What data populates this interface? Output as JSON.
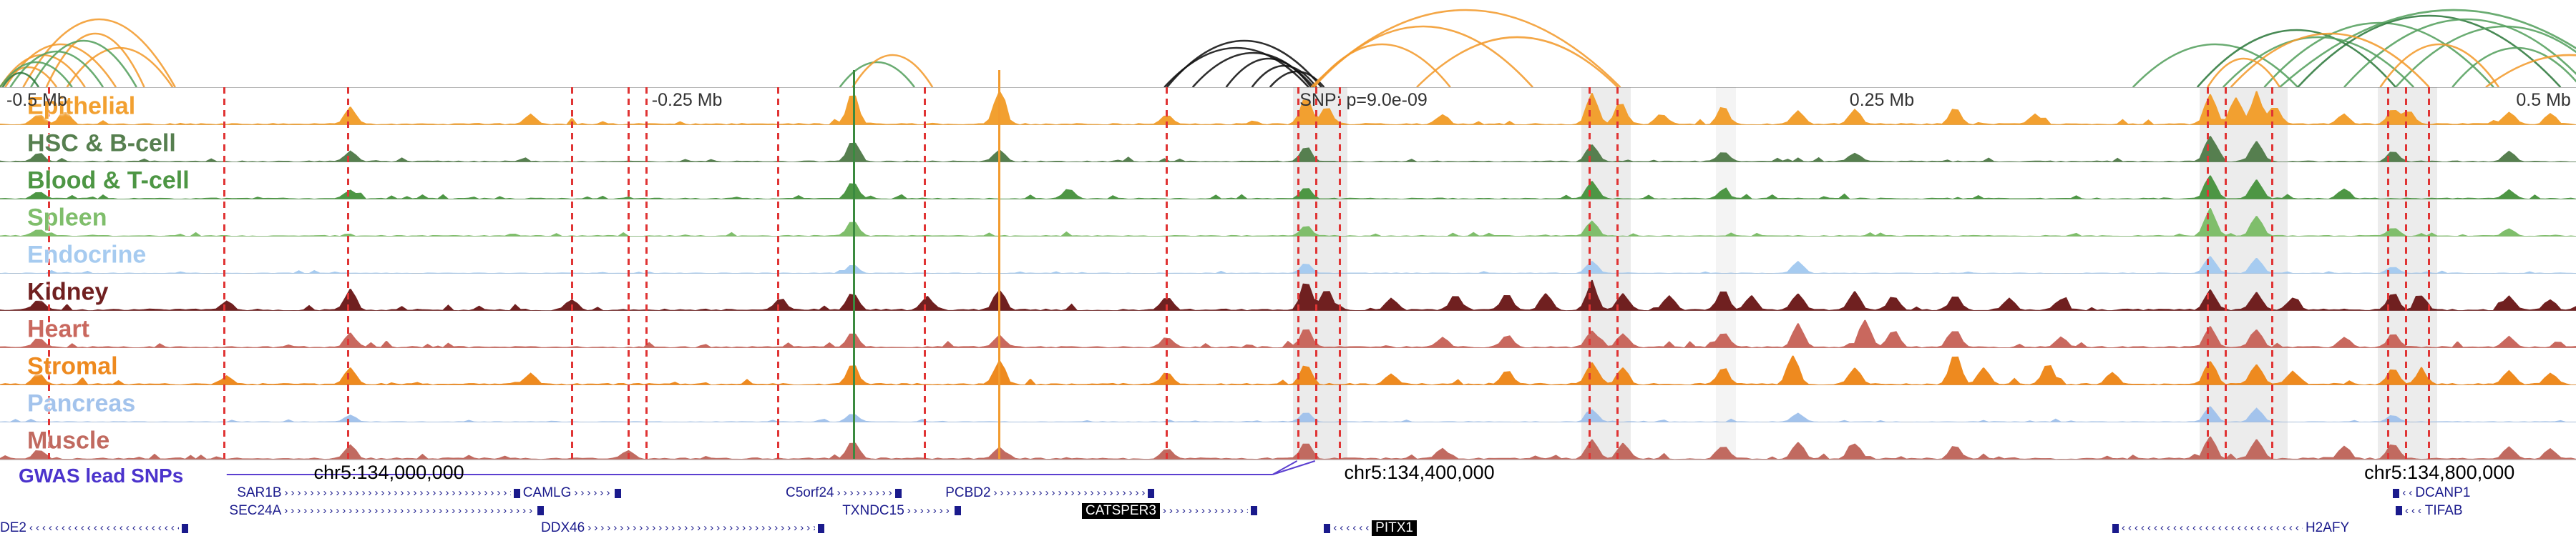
{
  "chart_data": {
    "type": "area",
    "description": "Genome browser: chromatin interaction arcs, 10 cell-type signal tracks, GWAS lead SNP annotations and gene models",
    "arc_colors": {
      "o": "#F29B2E",
      "g": "#55A05E",
      "dg": "#2F7A3D",
      "k": "#111111"
    },
    "arcs": [
      [
        0,
        3.3,
        "o",
        45
      ],
      [
        0.2,
        4.5,
        "o",
        60
      ],
      [
        0.9,
        6.8,
        "o",
        95
      ],
      [
        1.8,
        5.6,
        "o",
        75
      ],
      [
        0,
        2.2,
        "o",
        28
      ],
      [
        2.6,
        6.7,
        "o",
        55
      ],
      [
        0,
        2.8,
        "g",
        35
      ],
      [
        0.4,
        4.0,
        "g",
        50
      ],
      [
        1.2,
        5.3,
        "g",
        65
      ],
      [
        0.1,
        1.5,
        "dg",
        20
      ],
      [
        32.6,
        35.5,
        "g",
        35
      ],
      [
        33.1,
        36.2,
        "o",
        45
      ],
      [
        45.2,
        50.8,
        "k",
        55
      ],
      [
        46.3,
        51.0,
        "k",
        48
      ],
      [
        47.6,
        50.9,
        "k",
        40
      ],
      [
        48.6,
        51.1,
        "k",
        30
      ],
      [
        45.3,
        51.3,
        "k",
        65
      ],
      [
        49.3,
        51.4,
        "k",
        22
      ],
      [
        50.9,
        62.9,
        "o",
        108
      ],
      [
        51.0,
        59.5,
        "o",
        85
      ],
      [
        51.0,
        56.3,
        "o",
        60
      ],
      [
        55.0,
        62.8,
        "o",
        70
      ],
      [
        82.8,
        89.2,
        "g",
        60
      ],
      [
        85.3,
        93.0,
        "dg",
        80
      ],
      [
        86.3,
        93.7,
        "g",
        70
      ],
      [
        87.9,
        96.8,
        "g",
        90
      ],
      [
        89.2,
        99.4,
        "dg",
        100
      ],
      [
        91.0,
        100.5,
        "g",
        95
      ],
      [
        93.0,
        101.5,
        "g",
        85
      ],
      [
        88.5,
        102.0,
        "g",
        108
      ],
      [
        95.2,
        100.2,
        "g",
        55
      ],
      [
        85.7,
        88.5,
        "o",
        40
      ],
      [
        86.6,
        94.3,
        "o",
        75
      ],
      [
        92.4,
        97.0,
        "o",
        60
      ],
      [
        96.5,
        103.0,
        "o",
        45
      ]
    ],
    "tracks": [
      {
        "name": "Epithelial",
        "color": "#F2A030",
        "noise": 0.9,
        "peaks": [
          [
            1.5,
            0.3
          ],
          [
            2.5,
            0.4
          ],
          [
            13.6,
            0.5
          ],
          [
            20.6,
            0.3
          ],
          [
            33.1,
            0.95
          ],
          [
            38.8,
            1.0
          ],
          [
            45.3,
            0.25
          ],
          [
            50.7,
            0.8
          ],
          [
            51.5,
            0.5
          ],
          [
            56,
            0.3
          ],
          [
            61.8,
            0.9
          ],
          [
            62.9,
            0.65
          ],
          [
            64.5,
            0.3
          ],
          [
            66.9,
            0.5
          ],
          [
            69.8,
            0.4
          ],
          [
            72,
            0.45
          ],
          [
            75.9,
            0.5
          ],
          [
            79,
            0.3
          ],
          [
            85.8,
            0.9
          ],
          [
            86.8,
            0.8
          ],
          [
            87.6,
            0.85
          ],
          [
            88.3,
            0.55
          ],
          [
            91,
            0.3
          ],
          [
            92.9,
            0.45
          ],
          [
            93.5,
            0.4
          ],
          [
            97.4,
            0.35
          ],
          [
            99,
            0.3
          ]
        ]
      },
      {
        "name": "HSC & B-cell",
        "color": "#567F4F",
        "noise": 0.7,
        "peaks": [
          [
            1.5,
            0.25
          ],
          [
            13.6,
            0.3
          ],
          [
            33.1,
            0.6
          ],
          [
            38.8,
            0.35
          ],
          [
            50.7,
            0.45
          ],
          [
            61.8,
            0.5
          ],
          [
            66.9,
            0.3
          ],
          [
            72,
            0.25
          ],
          [
            85.8,
            0.75
          ],
          [
            87.6,
            0.6
          ],
          [
            92.9,
            0.3
          ],
          [
            97.4,
            0.3
          ]
        ]
      },
      {
        "name": "Blood & T-cell",
        "color": "#4D9644",
        "noise": 0.7,
        "peaks": [
          [
            1.5,
            0.2
          ],
          [
            13.6,
            0.25
          ],
          [
            33.1,
            0.5
          ],
          [
            41.5,
            0.3
          ],
          [
            50.7,
            0.35
          ],
          [
            61.8,
            0.5
          ],
          [
            66.9,
            0.25
          ],
          [
            85.8,
            0.7
          ],
          [
            87.6,
            0.55
          ],
          [
            91,
            0.3
          ],
          [
            97.4,
            0.25
          ]
        ]
      },
      {
        "name": "Spleen",
        "color": "#7FBE6B",
        "noise": 0.6,
        "peaks": [
          [
            1.5,
            0.2
          ],
          [
            33.1,
            0.45
          ],
          [
            50.7,
            0.3
          ],
          [
            61.8,
            0.45
          ],
          [
            85.8,
            0.8
          ],
          [
            87.6,
            0.6
          ],
          [
            92.9,
            0.25
          ],
          [
            97.4,
            0.2
          ]
        ]
      },
      {
        "name": "Endocrine",
        "color": "#A6CBF0",
        "noise": 0.4,
        "peaks": [
          [
            33.1,
            0.25
          ],
          [
            50.7,
            0.3
          ],
          [
            61.8,
            0.35
          ],
          [
            69.8,
            0.35
          ],
          [
            85.8,
            0.5
          ],
          [
            87.6,
            0.45
          ],
          [
            92.9,
            0.2
          ]
        ]
      },
      {
        "name": "Kidney",
        "color": "#702020",
        "noise": 1.0,
        "peaks": [
          [
            1.5,
            0.3
          ],
          [
            8.8,
            0.25
          ],
          [
            13.6,
            0.6
          ],
          [
            22.2,
            0.3
          ],
          [
            30.3,
            0.35
          ],
          [
            33.1,
            0.5
          ],
          [
            36,
            0.4
          ],
          [
            38.8,
            0.6
          ],
          [
            45.3,
            0.4
          ],
          [
            50.7,
            0.85
          ],
          [
            51.5,
            0.6
          ],
          [
            54,
            0.35
          ],
          [
            56.5,
            0.45
          ],
          [
            58.5,
            0.5
          ],
          [
            60,
            0.5
          ],
          [
            61.8,
            0.7
          ],
          [
            63,
            0.5
          ],
          [
            64.8,
            0.4
          ],
          [
            66.9,
            0.6
          ],
          [
            68,
            0.4
          ],
          [
            69.8,
            0.5
          ],
          [
            72,
            0.55
          ],
          [
            73.5,
            0.4
          ],
          [
            75.9,
            0.45
          ],
          [
            78,
            0.35
          ],
          [
            80,
            0.3
          ],
          [
            85.8,
            0.6
          ],
          [
            87.6,
            0.5
          ],
          [
            89,
            0.35
          ],
          [
            92.9,
            0.5
          ],
          [
            94,
            0.4
          ],
          [
            97.4,
            0.4
          ],
          [
            99,
            0.3
          ]
        ]
      },
      {
        "name": "Heart",
        "color": "#C9685E",
        "noise": 0.9,
        "peaks": [
          [
            1.5,
            0.25
          ],
          [
            13.6,
            0.4
          ],
          [
            33.1,
            0.45
          ],
          [
            38.8,
            0.35
          ],
          [
            45.3,
            0.3
          ],
          [
            50.7,
            0.6
          ],
          [
            56,
            0.3
          ],
          [
            58.5,
            0.35
          ],
          [
            61.8,
            0.5
          ],
          [
            63,
            0.4
          ],
          [
            66.9,
            0.45
          ],
          [
            69.8,
            0.7
          ],
          [
            72.4,
            0.8
          ],
          [
            73.5,
            0.5
          ],
          [
            75.9,
            0.5
          ],
          [
            80,
            0.3
          ],
          [
            85.8,
            0.6
          ],
          [
            87.6,
            0.5
          ],
          [
            91,
            0.3
          ],
          [
            92.9,
            0.4
          ],
          [
            97.4,
            0.3
          ]
        ]
      },
      {
        "name": "Stromal",
        "color": "#EE8A1F",
        "noise": 1.0,
        "peaks": [
          [
            1.5,
            0.3
          ],
          [
            8.8,
            0.25
          ],
          [
            13.6,
            0.5
          ],
          [
            20.6,
            0.3
          ],
          [
            33.1,
            0.6
          ],
          [
            38.8,
            0.7
          ],
          [
            45.3,
            0.35
          ],
          [
            50.7,
            0.6
          ],
          [
            54,
            0.3
          ],
          [
            58.5,
            0.4
          ],
          [
            61.8,
            0.65
          ],
          [
            63,
            0.5
          ],
          [
            66.9,
            0.5
          ],
          [
            69.6,
            0.85
          ],
          [
            72,
            0.5
          ],
          [
            75.9,
            0.9
          ],
          [
            77,
            0.5
          ],
          [
            79.5,
            0.6
          ],
          [
            82,
            0.35
          ],
          [
            85.8,
            0.7
          ],
          [
            87.6,
            0.6
          ],
          [
            89,
            0.4
          ],
          [
            92.9,
            0.5
          ],
          [
            94,
            0.4
          ],
          [
            97.4,
            0.4
          ],
          [
            99,
            0.35
          ]
        ]
      },
      {
        "name": "Pancreas",
        "color": "#A3C3EC",
        "noise": 0.4,
        "peaks": [
          [
            13.6,
            0.2
          ],
          [
            33.1,
            0.25
          ],
          [
            50.7,
            0.3
          ],
          [
            61.8,
            0.35
          ],
          [
            69.8,
            0.25
          ],
          [
            85.8,
            0.45
          ],
          [
            87.6,
            0.4
          ],
          [
            92.9,
            0.2
          ]
        ]
      },
      {
        "name": "Muscle",
        "color": "#C16A60",
        "noise": 0.9,
        "peaks": [
          [
            1.5,
            0.25
          ],
          [
            13.6,
            0.4
          ],
          [
            24.4,
            0.25
          ],
          [
            33.1,
            0.5
          ],
          [
            38.8,
            0.35
          ],
          [
            45.3,
            0.3
          ],
          [
            50.7,
            0.5
          ],
          [
            56,
            0.3
          ],
          [
            61.8,
            0.55
          ],
          [
            63,
            0.45
          ],
          [
            66.9,
            0.4
          ],
          [
            69.8,
            0.5
          ],
          [
            72,
            0.45
          ],
          [
            75.9,
            0.4
          ],
          [
            85.8,
            0.65
          ],
          [
            87.6,
            0.55
          ],
          [
            91,
            0.35
          ],
          [
            92.9,
            0.45
          ],
          [
            97.4,
            0.35
          ],
          [
            99,
            0.3
          ]
        ]
      }
    ],
    "snp_lines": [
      1.9,
      8.7,
      13.5,
      22.2,
      24.4,
      25.1,
      30.2,
      35.9,
      45.3,
      50.4,
      51.1,
      52.0,
      61.7,
      62.8,
      85.7,
      86.4,
      88.2,
      92.7,
      93.4,
      94.3
    ],
    "highlight_bands": [
      [
        50.2,
        52.3,
        0.14
      ],
      [
        61.4,
        63.3,
        0.13
      ],
      [
        66.6,
        67.4,
        0.08
      ],
      [
        85.4,
        88.8,
        0.13
      ],
      [
        92.3,
        94.6,
        0.13
      ]
    ],
    "marker_lines": [
      {
        "x": 33.15,
        "color": "#3A8A3F"
      },
      {
        "x": 38.8,
        "color": "#F29B2E"
      }
    ]
  },
  "ruler": {
    "labels": [
      {
        "text": "-0.5 Mb",
        "x": 0.25,
        "anchor": "left"
      },
      {
        "text": "-0.25 Mb",
        "x": 25.3,
        "anchor": "left"
      },
      {
        "text": "SNP: p=9.0e-09",
        "x": 50.45,
        "anchor": "left"
      },
      {
        "text": "0.25 Mb",
        "x": 71.8,
        "anchor": "left"
      },
      {
        "text": "0.5 Mb",
        "x": 99.8,
        "anchor": "right"
      }
    ]
  },
  "gwas": {
    "label": "GWAS lead SNPs",
    "color": "#5b3fd0",
    "line_x1": 8.8,
    "line_x2": 49.4,
    "snp_ticks": [
      50.35,
      51.05
    ]
  },
  "coords": [
    {
      "text": "chr5:134,000,000",
      "x": 15.1
    },
    {
      "text": "chr5:134,400,000",
      "x": 55.1
    },
    {
      "text": "chr5:134,800,000",
      "x": 94.7
    }
  ],
  "genes": [
    {
      "label": "SAR1B",
      "row": 0,
      "x": 9.2,
      "w": 11.0,
      "dir": "+",
      "label_pos": "start",
      "black": false
    },
    {
      "label": "CAMLG",
      "row": 0,
      "x": 20.3,
      "w": 3.8,
      "dir": "+",
      "label_pos": "start",
      "black": false
    },
    {
      "label": "C5orf24",
      "row": 0,
      "x": 30.5,
      "w": 4.5,
      "dir": "+",
      "label_pos": "start",
      "black": false
    },
    {
      "label": "PCBD2",
      "row": 0,
      "x": 36.7,
      "w": 8.1,
      "dir": "+",
      "label_pos": "start",
      "black": false
    },
    {
      "label": "DCANP1",
      "row": 0,
      "x": 92.9,
      "w": 3.0,
      "dir": "-",
      "label_pos": "end",
      "black": false
    },
    {
      "label": "SEC24A",
      "row": 1,
      "x": 8.9,
      "w": 12.2,
      "dir": "+",
      "label_pos": "start",
      "black": false
    },
    {
      "label": "TXNDC15",
      "row": 1,
      "x": 32.7,
      "w": 4.6,
      "dir": "+",
      "label_pos": "start",
      "black": false
    },
    {
      "label": "CATSPER3",
      "row": 1,
      "x": 42.0,
      "w": 6.8,
      "dir": "+",
      "label_pos": "start",
      "black": true
    },
    {
      "label": "TIFAB",
      "row": 1,
      "x": 93.0,
      "w": 2.6,
      "dir": "-",
      "label_pos": "end",
      "black": false
    },
    {
      "label": "DE2",
      "row": 2,
      "x": 0.0,
      "w": 7.3,
      "dir": "-",
      "label_pos": "start",
      "black": false
    },
    {
      "label": "DDX46",
      "row": 2,
      "x": 21.0,
      "w": 11.0,
      "dir": "+",
      "label_pos": "start",
      "black": false
    },
    {
      "label": "PITX1",
      "row": 2,
      "x": 51.4,
      "w": 3.6,
      "dir": "-",
      "label_pos": "end",
      "black": true
    },
    {
      "label": "H2AFY",
      "row": 2,
      "x": 82.0,
      "w": 9.2,
      "dir": "-",
      "label_pos": "end",
      "black": false
    }
  ]
}
